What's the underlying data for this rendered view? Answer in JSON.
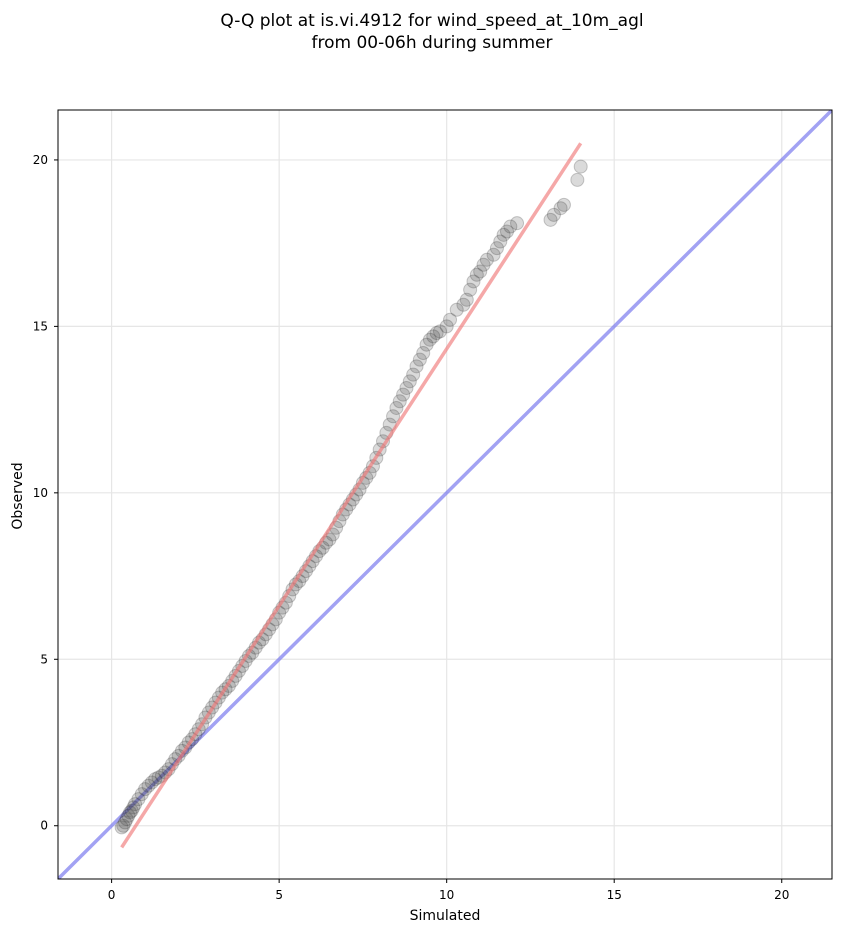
{
  "chart_data": {
    "type": "scatter",
    "title_lines": [
      "Q-Q plot at is.vi.4912 for wind_speed_at_10m_agl",
      "from 00-06h during summer"
    ],
    "xlabel": "Simulated",
    "ylabel": "Observed",
    "xlim": [
      -1.6,
      21.5
    ],
    "ylim": [
      -1.6,
      21.5
    ],
    "xticks": [
      0,
      5,
      10,
      15,
      20
    ],
    "yticks": [
      0,
      5,
      10,
      15,
      20
    ],
    "grid": true,
    "legend": "none",
    "colors": {
      "points": "#333333",
      "fit_line": "#f07a7a",
      "identity_line": "#7a7aee",
      "grid": "#e6e6e6"
    },
    "fit_line": {
      "x": [
        0.3,
        14.0
      ],
      "y": [
        -0.65,
        20.5
      ]
    },
    "identity_line": {
      "x": [
        -1.6,
        21.5
      ],
      "y": [
        -1.6,
        21.5
      ]
    },
    "quantiles": {
      "x": [
        0.3,
        0.35,
        0.4,
        0.45,
        0.5,
        0.55,
        0.6,
        0.65,
        0.7,
        0.8,
        0.9,
        1.0,
        1.1,
        1.2,
        1.3,
        1.4,
        1.5,
        1.6,
        1.7,
        1.8,
        1.9,
        2.0,
        2.1,
        2.2,
        2.3,
        2.4,
        2.5,
        2.6,
        2.7,
        2.8,
        2.9,
        3.0,
        3.1,
        3.2,
        3.3,
        3.4,
        3.5,
        3.6,
        3.7,
        3.8,
        3.9,
        4.0,
        4.1,
        4.2,
        4.3,
        4.4,
        4.5,
        4.6,
        4.7,
        4.8,
        4.9,
        5.0,
        5.1,
        5.2,
        5.3,
        5.4,
        5.5,
        5.6,
        5.7,
        5.8,
        5.9,
        6.0,
        6.1,
        6.2,
        6.3,
        6.4,
        6.5,
        6.6,
        6.7,
        6.8,
        6.9,
        7.0,
        7.1,
        7.2,
        7.3,
        7.4,
        7.5,
        7.6,
        7.7,
        7.8,
        7.9,
        8.0,
        8.1,
        8.2,
        8.3,
        8.4,
        8.5,
        8.6,
        8.7,
        8.8,
        8.9,
        9.0,
        9.1,
        9.2,
        9.3,
        9.4,
        9.5,
        9.6,
        9.7,
        9.8,
        10.0,
        10.1,
        10.3,
        10.5,
        10.6,
        10.7,
        10.8,
        10.9,
        11.0,
        11.1,
        11.2,
        11.4,
        11.5,
        11.6,
        11.7,
        11.8,
        11.9,
        12.1,
        13.1,
        13.2,
        13.4,
        13.5,
        13.9,
        14.0
      ],
      "y": [
        -0.05,
        0.0,
        0.1,
        0.2,
        0.3,
        0.4,
        0.45,
        0.55,
        0.65,
        0.8,
        0.95,
        1.1,
        1.2,
        1.3,
        1.4,
        1.45,
        1.5,
        1.6,
        1.7,
        1.85,
        2.0,
        2.1,
        2.25,
        2.35,
        2.5,
        2.6,
        2.75,
        2.9,
        3.05,
        3.25,
        3.4,
        3.55,
        3.7,
        3.85,
        4.0,
        4.1,
        4.2,
        4.35,
        4.5,
        4.65,
        4.8,
        4.95,
        5.1,
        5.2,
        5.35,
        5.5,
        5.6,
        5.75,
        5.9,
        6.05,
        6.2,
        6.4,
        6.55,
        6.7,
        6.9,
        7.1,
        7.25,
        7.35,
        7.5,
        7.65,
        7.8,
        7.95,
        8.1,
        8.25,
        8.35,
        8.5,
        8.6,
        8.75,
        8.95,
        9.15,
        9.35,
        9.5,
        9.65,
        9.8,
        9.95,
        10.1,
        10.3,
        10.45,
        10.6,
        10.8,
        11.05,
        11.3,
        11.55,
        11.8,
        12.05,
        12.3,
        12.55,
        12.75,
        12.95,
        13.15,
        13.35,
        13.55,
        13.8,
        14.0,
        14.2,
        14.45,
        14.6,
        14.7,
        14.8,
        14.85,
        15.0,
        15.2,
        15.5,
        15.65,
        15.8,
        16.1,
        16.35,
        16.55,
        16.65,
        16.85,
        17.0,
        17.15,
        17.35,
        17.55,
        17.75,
        17.85,
        18.0,
        18.1,
        18.2,
        18.35,
        18.55,
        18.65,
        19.4,
        19.8
      ]
    }
  }
}
